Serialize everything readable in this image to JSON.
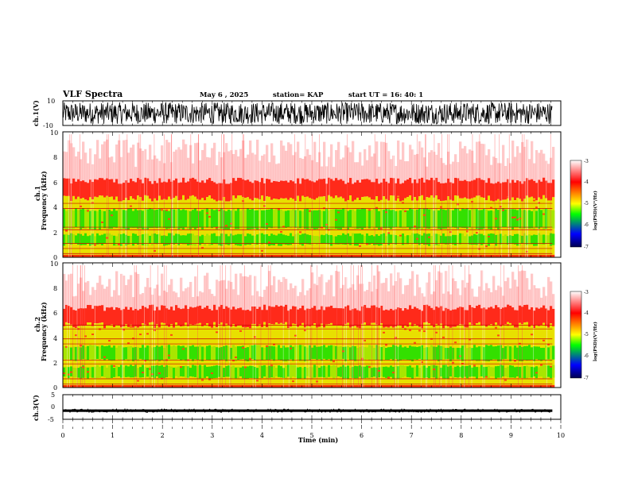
{
  "header": {
    "title": "VLF Spectra",
    "date": "May 6  , 2025",
    "station": "station= KAP",
    "start": "start  UT  =   16: 40: 1"
  },
  "chart_data": [
    {
      "type": "line",
      "panel": "ch1-waveform",
      "ylabel": "ch.1(V)",
      "yticks": [
        "10",
        "-10"
      ],
      "ylim": [
        -10,
        10
      ],
      "xlim": [
        0,
        10
      ],
      "data_end_min": 9.83,
      "series": [
        {
          "envelope_min": -8.8,
          "envelope_max": 8.8
        }
      ]
    },
    {
      "type": "heatmap",
      "panel": "ch1-spectrogram",
      "ylabel": "ch.1\nFrequency  (kHz)",
      "yticks": [
        "10",
        "8",
        "6",
        "4",
        "2",
        "0"
      ],
      "ylim": [
        0,
        10
      ],
      "xlim": [
        0,
        10
      ],
      "data_end_min": 9.83,
      "noise_top_khz": 4.7,
      "green_bands_khz": [
        [
          1.0,
          1.8
        ],
        [
          2.3,
          3.8
        ]
      ],
      "lines_khz": [
        0.3,
        0.7,
        1.1,
        2.2,
        2.4,
        3.9,
        4.3
      ]
    },
    {
      "type": "heatmap",
      "panel": "ch2-spectrogram",
      "ylabel": "ch.2\nFrequency  (kHz)",
      "yticks": [
        "10",
        "8",
        "6",
        "4",
        "2",
        "0"
      ],
      "ylim": [
        0,
        10
      ],
      "xlim": [
        0,
        10
      ],
      "data_end_min": 9.83,
      "noise_top_khz": 5.0,
      "green_bands_khz": [
        [
          0.8,
          1.7
        ],
        [
          2.2,
          3.3
        ]
      ],
      "lines_khz": [
        0.3,
        0.7,
        1.9,
        2.2,
        3.5,
        3.9,
        4.7,
        5.0
      ]
    },
    {
      "type": "line",
      "panel": "ch3-waveform",
      "ylabel": "ch.3(V)",
      "yticks": [
        "5",
        "0",
        "-5"
      ],
      "ylim": [
        -5,
        5
      ],
      "xlim": [
        0,
        10
      ],
      "data_end_min": 9.83,
      "series": [
        {
          "center": -1.5,
          "envelope_min": -2.0,
          "envelope_max": -1.0
        }
      ]
    }
  ],
  "xaxis": {
    "label": "Time  (min)",
    "ticks": [
      "0",
      "1",
      "2",
      "3",
      "4",
      "5",
      "6",
      "7",
      "8",
      "9",
      "10"
    ]
  },
  "colorbar": {
    "label": "log(PSD)(V²/Hz)",
    "ticks": [
      "-3",
      "-4",
      "-5",
      "-6",
      "-7"
    ],
    "range": [
      -7,
      -3
    ],
    "colors": [
      "#ffffff",
      "#ff0000",
      "#ffff00",
      "#00ff00",
      "#0000ff",
      "#000050"
    ]
  }
}
